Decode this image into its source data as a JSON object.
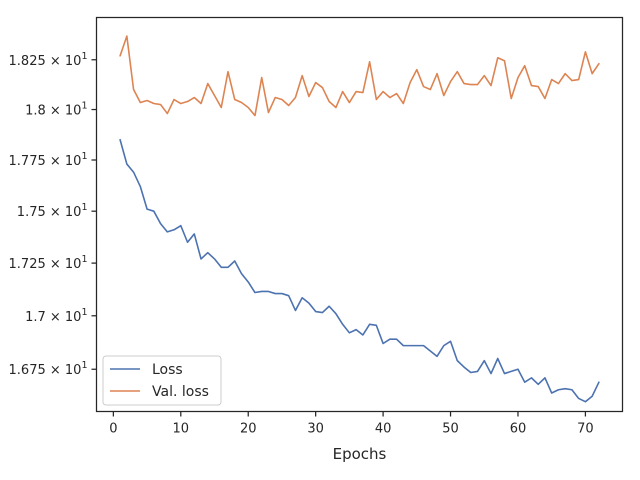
{
  "chart_data": {
    "type": "line",
    "title": "",
    "xlabel": "Epochs",
    "ylabel": "",
    "xlim": [
      -2.5,
      75.5
    ],
    "ylim": [
      16.555,
      18.465
    ],
    "x_ticks": [
      0,
      10,
      20,
      30,
      40,
      50,
      60,
      70
    ],
    "y_ticks": [
      {
        "value": 16.75,
        "mantissa": "1.675",
        "exponent": "1"
      },
      {
        "value": 17.0,
        "mantissa": "1.7",
        "exponent": "1"
      },
      {
        "value": 17.25,
        "mantissa": "1.725",
        "exponent": "1"
      },
      {
        "value": 17.5,
        "mantissa": "1.75",
        "exponent": "1"
      },
      {
        "value": 17.75,
        "mantissa": "1.775",
        "exponent": "1"
      },
      {
        "value": 18.0,
        "mantissa": "1.8",
        "exponent": "1"
      },
      {
        "value": 18.25,
        "mantissa": "1.825",
        "exponent": "1"
      }
    ],
    "tick_times_symbol": "×",
    "tick_base": "10",
    "y_scale": "log",
    "grid": false,
    "legend_position": "lower-left",
    "series": [
      {
        "name": "Loss",
        "color": "#4c72b0",
        "values": [
          17.85,
          17.73,
          17.69,
          17.62,
          17.51,
          17.5,
          17.44,
          17.4,
          17.41,
          17.43,
          17.35,
          17.39,
          17.27,
          17.3,
          17.27,
          17.23,
          17.23,
          17.26,
          17.2,
          17.16,
          17.11,
          17.115,
          17.115,
          17.105,
          17.105,
          17.095,
          17.025,
          17.085,
          17.06,
          17.02,
          17.015,
          17.045,
          17.01,
          16.96,
          16.92,
          16.935,
          16.91,
          16.96,
          16.955,
          16.87,
          16.89,
          16.89,
          16.86,
          16.86,
          16.86,
          16.86,
          16.835,
          16.81,
          16.86,
          16.88,
          16.79,
          16.76,
          16.735,
          16.74,
          16.79,
          16.73,
          16.8,
          16.73,
          16.74,
          16.75,
          16.69,
          16.71,
          16.68,
          16.71,
          16.64,
          16.655,
          16.66,
          16.655,
          16.615,
          16.6,
          16.625,
          16.69
        ]
      },
      {
        "name": "Val. loss",
        "color": "#dd8452",
        "values": [
          18.27,
          18.37,
          18.1,
          18.035,
          18.045,
          18.03,
          18.025,
          17.98,
          18.05,
          18.03,
          18.04,
          18.06,
          18.03,
          18.13,
          18.07,
          18.01,
          18.19,
          18.05,
          18.035,
          18.01,
          17.97,
          18.16,
          17.985,
          18.06,
          18.05,
          18.02,
          18.06,
          18.17,
          18.065,
          18.135,
          18.11,
          18.04,
          18.01,
          18.09,
          18.035,
          18.09,
          18.085,
          18.24,
          18.05,
          18.09,
          18.06,
          18.08,
          18.03,
          18.135,
          18.2,
          18.115,
          18.1,
          18.18,
          18.07,
          18.14,
          18.19,
          18.13,
          18.125,
          18.125,
          18.17,
          18.12,
          18.26,
          18.245,
          18.055,
          18.16,
          18.22,
          18.12,
          18.115,
          18.055,
          18.15,
          18.13,
          18.18,
          18.145,
          18.15,
          18.29,
          18.18,
          18.23
        ]
      }
    ]
  }
}
